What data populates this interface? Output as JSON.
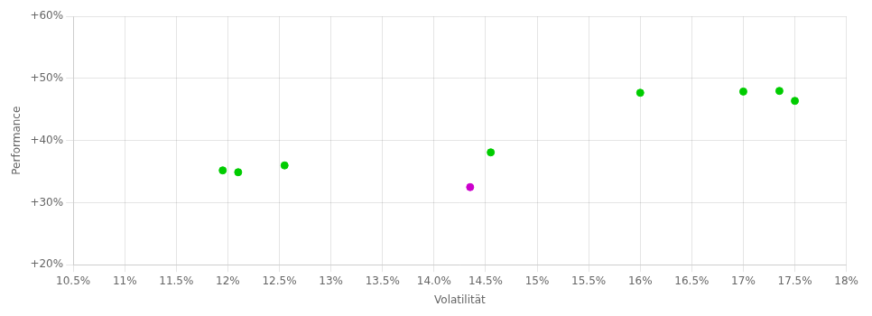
{
  "chart_data": {
    "type": "scatter",
    "xlabel": "Volatilität",
    "ylabel": "Performance",
    "xlim": [
      0.105,
      0.18
    ],
    "ylim": [
      0.2,
      0.6
    ],
    "xticks": [
      {
        "value": 0.105,
        "label": "10.5%"
      },
      {
        "value": 0.11,
        "label": "11%"
      },
      {
        "value": 0.115,
        "label": "11.5%"
      },
      {
        "value": 0.12,
        "label": "12%"
      },
      {
        "value": 0.125,
        "label": "12.5%"
      },
      {
        "value": 0.13,
        "label": "13%"
      },
      {
        "value": 0.135,
        "label": "13.5%"
      },
      {
        "value": 0.14,
        "label": "14.0%"
      },
      {
        "value": 0.145,
        "label": "14.5%"
      },
      {
        "value": 0.15,
        "label": "15%"
      },
      {
        "value": 0.155,
        "label": "15.5%"
      },
      {
        "value": 0.16,
        "label": "16%"
      },
      {
        "value": 0.165,
        "label": "16.5%"
      },
      {
        "value": 0.17,
        "label": "17%"
      },
      {
        "value": 0.175,
        "label": "17.5%"
      },
      {
        "value": 0.18,
        "label": "18%"
      }
    ],
    "yticks": [
      {
        "value": 0.2,
        "label": "+20%"
      },
      {
        "value": 0.3,
        "label": "+30%"
      },
      {
        "value": 0.4,
        "label": "+40%"
      },
      {
        "value": 0.5,
        "label": "+50%"
      },
      {
        "value": 0.6,
        "label": "+60%"
      }
    ],
    "grid": true,
    "series": [
      {
        "color": "#00cc00",
        "x": [
          0.1195,
          0.121,
          0.1255,
          0.1455,
          0.16,
          0.17,
          0.1735,
          0.175
        ],
        "values": [
          0.352,
          0.349,
          0.36,
          0.381,
          0.477,
          0.479,
          0.48,
          0.464
        ]
      },
      {
        "color": "#cc00cc",
        "x": [
          0.1435
        ],
        "values": [
          0.325
        ]
      }
    ]
  }
}
